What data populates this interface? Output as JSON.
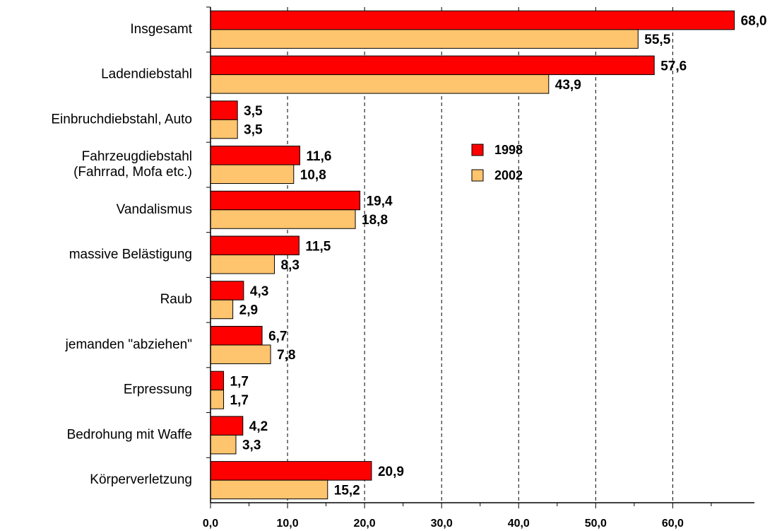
{
  "chart_data": {
    "type": "hbar",
    "categories": [
      "Insgesamt",
      "Ladendiebstahl",
      "Einbruchdiebstahl, Auto",
      "Fahrzeugdiebstahl\n(Fahrrad, Mofa etc.)",
      "Vandalismus",
      "massive Belästigung",
      "Raub",
      "jemanden \"abziehen\"",
      "Erpressung",
      "Bedrohung mit Waffe",
      "Körperverletzung"
    ],
    "series": [
      {
        "name": "1998",
        "color": "#ff0000",
        "values": [
          68.0,
          57.6,
          3.5,
          11.6,
          19.4,
          11.5,
          4.3,
          6.7,
          1.7,
          4.2,
          20.9
        ],
        "value_labels": [
          "68,0",
          "57,6",
          "3,5",
          "11,6",
          "19,4",
          "11,5",
          "4,3",
          "6,7",
          "1,7",
          "4,2",
          "20,9"
        ]
      },
      {
        "name": "2002",
        "color": "#ffc46e",
        "values": [
          55.5,
          43.9,
          3.5,
          10.8,
          18.8,
          8.3,
          2.9,
          7.8,
          1.7,
          3.3,
          15.2
        ],
        "value_labels": [
          "55,5",
          "43,9",
          "3,5",
          "10,8",
          "18,8",
          "8,3",
          "2,9",
          "7,8",
          "1,7",
          "3,3",
          "15,2"
        ]
      }
    ],
    "xlim": [
      0,
      70.6
    ],
    "xticks": [
      {
        "value": 0,
        "label": "0,0"
      },
      {
        "value": 10,
        "label": "10,0"
      },
      {
        "value": 20,
        "label": "20,0"
      },
      {
        "value": 30,
        "label": "30,0"
      },
      {
        "value": 40,
        "label": "40,0"
      },
      {
        "value": 50,
        "label": "50,0"
      },
      {
        "value": 60,
        "label": "60,0"
      }
    ],
    "grid": true,
    "legend": "center"
  }
}
